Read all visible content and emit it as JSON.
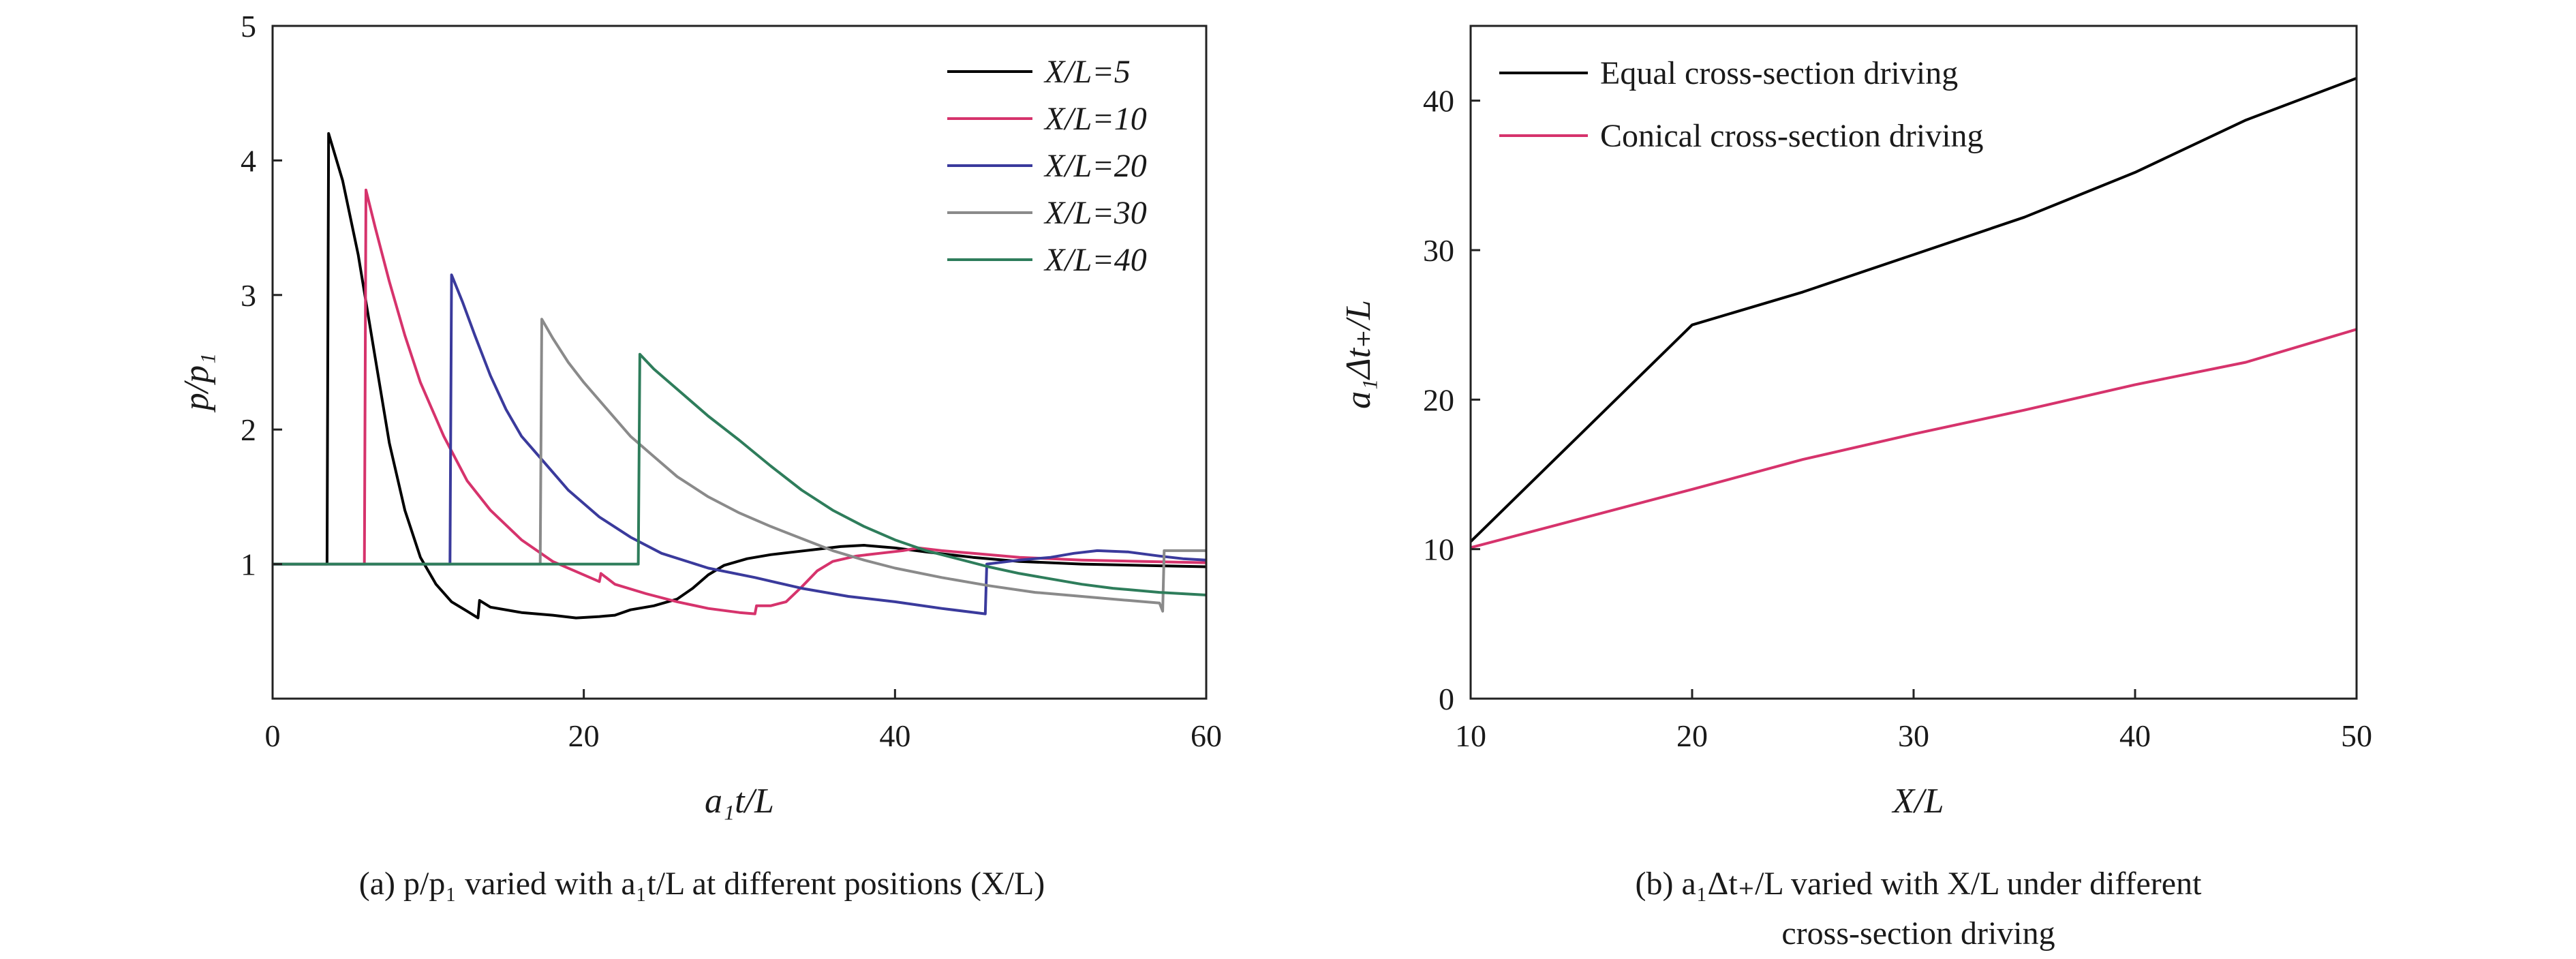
{
  "figure": {
    "caption_a": "(a) p/p₁ varied with a₁t/L at different positions (X/L)",
    "caption_b_line1": "(b) a₁Δt₊/L varied with X/L under different",
    "caption_b_line2": "cross-section driving"
  },
  "chart_data": [
    {
      "type": "line",
      "xlabel": "a₁t/L",
      "ylabel": "p/p₁",
      "xlim": [
        0,
        60
      ],
      "ylim": [
        0,
        5
      ],
      "xticks": [
        "0",
        "20",
        "40",
        "60"
      ],
      "yticks": [
        "1",
        "2",
        "3",
        "4",
        "5"
      ],
      "grid": false,
      "legend_position": "top-right",
      "series": [
        {
          "name": "X/L=5",
          "color": "#000000",
          "points": [
            [
              0,
              1
            ],
            [
              3.5,
              1
            ],
            [
              3.6,
              4.2
            ],
            [
              4.5,
              3.85
            ],
            [
              5.5,
              3.3
            ],
            [
              6.5,
              2.6
            ],
            [
              7.5,
              1.9
            ],
            [
              8.5,
              1.4
            ],
            [
              9.5,
              1.05
            ],
            [
              10.5,
              0.85
            ],
            [
              11.5,
              0.72
            ],
            [
              12.5,
              0.65
            ],
            [
              13.2,
              0.6
            ],
            [
              13.3,
              0.73
            ],
            [
              14,
              0.68
            ],
            [
              16,
              0.64
            ],
            [
              18,
              0.62
            ],
            [
              19.5,
              0.6
            ],
            [
              21,
              0.61
            ],
            [
              22,
              0.62
            ],
            [
              23,
              0.66
            ],
            [
              24.5,
              0.69
            ],
            [
              26,
              0.74
            ],
            [
              27,
              0.82
            ],
            [
              28,
              0.92
            ],
            [
              29,
              0.99
            ],
            [
              30.5,
              1.04
            ],
            [
              32,
              1.07
            ],
            [
              33.5,
              1.09
            ],
            [
              35,
              1.11
            ],
            [
              36.5,
              1.13
            ],
            [
              38,
              1.14
            ],
            [
              40,
              1.12
            ],
            [
              42,
              1.09
            ],
            [
              45,
              1.05
            ],
            [
              48,
              1.02
            ],
            [
              52,
              1.0
            ],
            [
              56,
              0.99
            ],
            [
              60,
              0.98
            ]
          ]
        },
        {
          "name": "X/L=10",
          "color": "#d6336c",
          "points": [
            [
              0,
              1
            ],
            [
              5.9,
              1
            ],
            [
              6.0,
              3.78
            ],
            [
              6.6,
              3.5
            ],
            [
              7.5,
              3.1
            ],
            [
              8.5,
              2.7
            ],
            [
              9.5,
              2.35
            ],
            [
              11,
              1.95
            ],
            [
              12.5,
              1.62
            ],
            [
              14,
              1.4
            ],
            [
              16,
              1.18
            ],
            [
              18,
              1.02
            ],
            [
              20,
              0.92
            ],
            [
              21,
              0.87
            ],
            [
              21.1,
              0.93
            ],
            [
              22,
              0.85
            ],
            [
              24,
              0.78
            ],
            [
              26,
              0.72
            ],
            [
              28,
              0.67
            ],
            [
              30,
              0.64
            ],
            [
              31,
              0.63
            ],
            [
              31.1,
              0.69
            ],
            [
              32,
              0.69
            ],
            [
              33,
              0.72
            ],
            [
              34,
              0.83
            ],
            [
              35,
              0.95
            ],
            [
              36,
              1.02
            ],
            [
              37.5,
              1.06
            ],
            [
              39,
              1.08
            ],
            [
              40.5,
              1.1
            ],
            [
              41.5,
              1.12
            ],
            [
              43,
              1.1
            ],
            [
              45,
              1.08
            ],
            [
              48,
              1.05
            ],
            [
              52,
              1.03
            ],
            [
              56,
              1.02
            ],
            [
              60,
              1.01
            ]
          ]
        },
        {
          "name": "X/L=20",
          "color": "#3a3a9c",
          "points": [
            [
              0,
              1
            ],
            [
              11.4,
              1
            ],
            [
              11.5,
              3.15
            ],
            [
              12.2,
              2.95
            ],
            [
              13,
              2.7
            ],
            [
              14,
              2.4
            ],
            [
              15,
              2.15
            ],
            [
              16,
              1.95
            ],
            [
              17.5,
              1.75
            ],
            [
              19,
              1.55
            ],
            [
              21,
              1.35
            ],
            [
              23,
              1.2
            ],
            [
              25,
              1.08
            ],
            [
              28,
              0.97
            ],
            [
              31,
              0.9
            ],
            [
              34,
              0.82
            ],
            [
              37,
              0.76
            ],
            [
              40,
              0.72
            ],
            [
              43,
              0.67
            ],
            [
              45.8,
              0.63
            ],
            [
              45.9,
              1.0
            ],
            [
              48,
              1.03
            ],
            [
              50,
              1.05
            ],
            [
              51.5,
              1.08
            ],
            [
              53,
              1.1
            ],
            [
              55,
              1.09
            ],
            [
              57,
              1.06
            ],
            [
              58.5,
              1.04
            ],
            [
              60,
              1.03
            ]
          ]
        },
        {
          "name": "X/L=30",
          "color": "#8a8a8a",
          "points": [
            [
              0,
              1
            ],
            [
              17.2,
              1
            ],
            [
              17.3,
              2.82
            ],
            [
              18,
              2.68
            ],
            [
              19,
              2.5
            ],
            [
              20,
              2.35
            ],
            [
              21.5,
              2.15
            ],
            [
              23,
              1.95
            ],
            [
              24.5,
              1.8
            ],
            [
              26,
              1.65
            ],
            [
              28,
              1.5
            ],
            [
              30,
              1.38
            ],
            [
              32,
              1.28
            ],
            [
              34,
              1.19
            ],
            [
              36,
              1.1
            ],
            [
              38,
              1.03
            ],
            [
              40,
              0.97
            ],
            [
              43,
              0.9
            ],
            [
              46,
              0.84
            ],
            [
              49,
              0.79
            ],
            [
              52,
              0.76
            ],
            [
              55,
              0.73
            ],
            [
              57,
              0.71
            ],
            [
              57.2,
              0.65
            ],
            [
              57.3,
              1.1
            ],
            [
              58.5,
              1.1
            ],
            [
              60,
              1.1
            ]
          ]
        },
        {
          "name": "X/L=40",
          "color": "#2e7d5b",
          "points": [
            [
              0,
              1
            ],
            [
              23.5,
              1
            ],
            [
              23.6,
              2.56
            ],
            [
              24.5,
              2.45
            ],
            [
              26,
              2.3
            ],
            [
              28,
              2.1
            ],
            [
              30,
              1.92
            ],
            [
              32,
              1.73
            ],
            [
              34,
              1.55
            ],
            [
              36,
              1.4
            ],
            [
              38,
              1.28
            ],
            [
              40,
              1.18
            ],
            [
              42,
              1.1
            ],
            [
              44,
              1.04
            ],
            [
              46,
              0.98
            ],
            [
              48,
              0.93
            ],
            [
              50,
              0.89
            ],
            [
              52,
              0.85
            ],
            [
              54,
              0.82
            ],
            [
              57,
              0.79
            ],
            [
              60,
              0.77
            ]
          ]
        }
      ]
    },
    {
      "type": "line",
      "xlabel": "X/L",
      "ylabel": "a₁Δt₊/L",
      "xlim": [
        10,
        50
      ],
      "ylim": [
        0,
        45
      ],
      "xticks": [
        "10",
        "20",
        "30",
        "40",
        "50"
      ],
      "yticks": [
        "0",
        "10",
        "20",
        "30",
        "40"
      ],
      "grid": false,
      "legend_position": "top-left",
      "series": [
        {
          "name": "Equal cross-section driving",
          "color": "#000000",
          "points": [
            [
              10,
              10.5
            ],
            [
              20,
              25
            ],
            [
              25,
              27.2
            ],
            [
              30,
              29.7
            ],
            [
              35,
              32.2
            ],
            [
              40,
              35.2
            ],
            [
              45,
              38.7
            ],
            [
              50,
              41.5
            ]
          ]
        },
        {
          "name": "Conical cross-section driving",
          "color": "#d6336c",
          "points": [
            [
              10,
              10.1
            ],
            [
              20,
              14
            ],
            [
              25,
              16
            ],
            [
              30,
              17.7
            ],
            [
              35,
              19.3
            ],
            [
              40,
              21
            ],
            [
              45,
              22.5
            ],
            [
              50,
              24.7
            ]
          ]
        }
      ]
    }
  ]
}
